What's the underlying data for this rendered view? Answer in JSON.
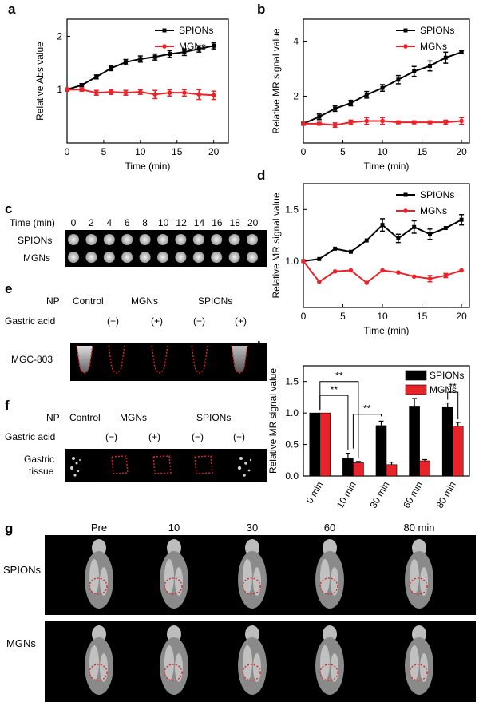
{
  "panel_labels": {
    "a": "a",
    "b": "b",
    "c": "c",
    "d": "d",
    "e": "e",
    "f": "f",
    "g": "g",
    "h": "h"
  },
  "colors": {
    "SPIONs": "#000000",
    "MGNs": "#e8232a",
    "dotted": "#d32424"
  },
  "chart_data": [
    {
      "id": "a",
      "type": "line",
      "xlabel": "Time (min)",
      "ylabel": "Relative Abs value",
      "xlim": [
        0,
        22
      ],
      "ylim": [
        0.5,
        2.5
      ],
      "xticks": [
        0,
        5,
        10,
        15,
        20
      ],
      "yticks": [
        1,
        2
      ],
      "legend_position": "top-right",
      "log_y": true,
      "x": [
        0,
        2,
        4,
        6,
        8,
        10,
        12,
        14,
        16,
        18,
        20
      ],
      "series": [
        {
          "name": "SPIONs",
          "values": [
            1.0,
            1.06,
            1.18,
            1.32,
            1.43,
            1.49,
            1.53,
            1.59,
            1.63,
            1.7,
            1.77
          ],
          "err": [
            0.02,
            0.02,
            0.03,
            0.04,
            0.05,
            0.06,
            0.06,
            0.07,
            0.07,
            0.07,
            0.07
          ]
        },
        {
          "name": "MGNs",
          "values": [
            1.0,
            1.0,
            0.96,
            0.97,
            0.96,
            0.97,
            0.94,
            0.96,
            0.96,
            0.94,
            0.93
          ],
          "err": [
            0.02,
            0.02,
            0.03,
            0.03,
            0.03,
            0.03,
            0.05,
            0.04,
            0.04,
            0.06,
            0.05
          ]
        }
      ]
    },
    {
      "id": "b",
      "type": "line",
      "xlabel": "Time (min)",
      "ylabel": "Relative MR signal value",
      "xlim": [
        0,
        21
      ],
      "ylim": [
        0.3,
        4.8
      ],
      "xticks": [
        0,
        5,
        10,
        15,
        20
      ],
      "yticks": [
        2,
        4
      ],
      "legend_position": "top-right",
      "x": [
        0,
        2,
        4,
        6,
        8,
        10,
        12,
        14,
        16,
        18,
        20
      ],
      "series": [
        {
          "name": "SPIONs",
          "values": [
            1.0,
            1.25,
            1.55,
            1.75,
            2.05,
            2.3,
            2.6,
            2.9,
            3.1,
            3.4,
            3.6
          ],
          "err": [
            0.05,
            0.1,
            0.1,
            0.1,
            0.12,
            0.12,
            0.15,
            0.18,
            0.18,
            0.2,
            0.05
          ]
        },
        {
          "name": "MGNs",
          "values": [
            1.0,
            1.0,
            0.95,
            1.05,
            1.1,
            1.1,
            1.05,
            1.05,
            1.05,
            1.05,
            1.1
          ],
          "err": [
            0.02,
            0.05,
            0.08,
            0.08,
            0.12,
            0.12,
            0.05,
            0.05,
            0.05,
            0.08,
            0.12
          ]
        }
      ]
    },
    {
      "id": "d",
      "type": "line",
      "xlabel": "Time (min)",
      "ylabel": "Relative MR signal value",
      "xlim": [
        0,
        21
      ],
      "ylim": [
        0.55,
        1.75
      ],
      "xticks": [
        0,
        5,
        10,
        15,
        20
      ],
      "yticks": [
        1.0,
        1.5
      ],
      "ytick_labels": [
        "1.0",
        "1.5"
      ],
      "legend_position": "top-right",
      "x": [
        0,
        2,
        4,
        6,
        8,
        10,
        12,
        14,
        16,
        18,
        20
      ],
      "series": [
        {
          "name": "SPIONs",
          "values": [
            1.0,
            1.02,
            1.12,
            1.09,
            1.2,
            1.35,
            1.22,
            1.33,
            1.26,
            1.32,
            1.4
          ],
          "err": [
            0.0,
            0.0,
            0.0,
            0.0,
            0.0,
            0.06,
            0.04,
            0.06,
            0.05,
            0.0,
            0.05
          ]
        },
        {
          "name": "MGNs",
          "values": [
            1.0,
            0.8,
            0.9,
            0.91,
            0.79,
            0.91,
            0.89,
            0.85,
            0.83,
            0.86,
            0.91
          ],
          "err": [
            0,
            0,
            0,
            0,
            0,
            0,
            0,
            0,
            0.03,
            0.02,
            0
          ]
        }
      ]
    },
    {
      "id": "h",
      "type": "bar",
      "ylabel": "Relative MR signal value",
      "ylim": [
        0,
        1.75
      ],
      "yticks": [
        0.0,
        0.5,
        1.0,
        1.5
      ],
      "ytick_labels": [
        "0.0",
        "0.5",
        "1.0",
        "1.5"
      ],
      "categories": [
        "0 min",
        "10 min",
        "30 min",
        "60 min",
        "80 min"
      ],
      "legend_position": "top-right",
      "series": [
        {
          "name": "SPIONs",
          "values": [
            1.0,
            0.28,
            0.8,
            1.11,
            1.1
          ],
          "err": [
            0.0,
            0.08,
            0.07,
            0.12,
            0.06
          ]
        },
        {
          "name": "MGNs",
          "values": [
            1.0,
            0.21,
            0.18,
            0.24,
            0.79
          ],
          "err": [
            0.0,
            0.02,
            0.04,
            0.02,
            0.06
          ]
        }
      ],
      "significance": [
        "**",
        "**",
        "**",
        "**"
      ]
    }
  ],
  "panel_c": {
    "row_label_header": "Time (min)",
    "times": [
      "0",
      "2",
      "4",
      "6",
      "8",
      "10",
      "12",
      "14",
      "16",
      "18",
      "20"
    ],
    "rows": [
      "SPIONs",
      "MGNs"
    ]
  },
  "panel_e": {
    "np_label": "NP",
    "control": "Control",
    "mgns": "MGNs",
    "spions": "SPIONs",
    "acid_label": "Gastric acid",
    "minus": "(−)",
    "plus": "(+)",
    "row_label": "MGC-803"
  },
  "panel_f": {
    "np_label": "NP",
    "control": "Control",
    "mgns": "MGNs",
    "spions": "SPIONs",
    "acid_label": "Gastric acid",
    "minus": "(−)",
    "plus": "(+)",
    "row_label_1": "Gastric",
    "row_label_2": "tissue"
  },
  "panel_g": {
    "times": [
      "Pre",
      "10",
      "30",
      "60",
      "80 min"
    ],
    "rows": [
      "SPIONs",
      "MGNs"
    ]
  }
}
